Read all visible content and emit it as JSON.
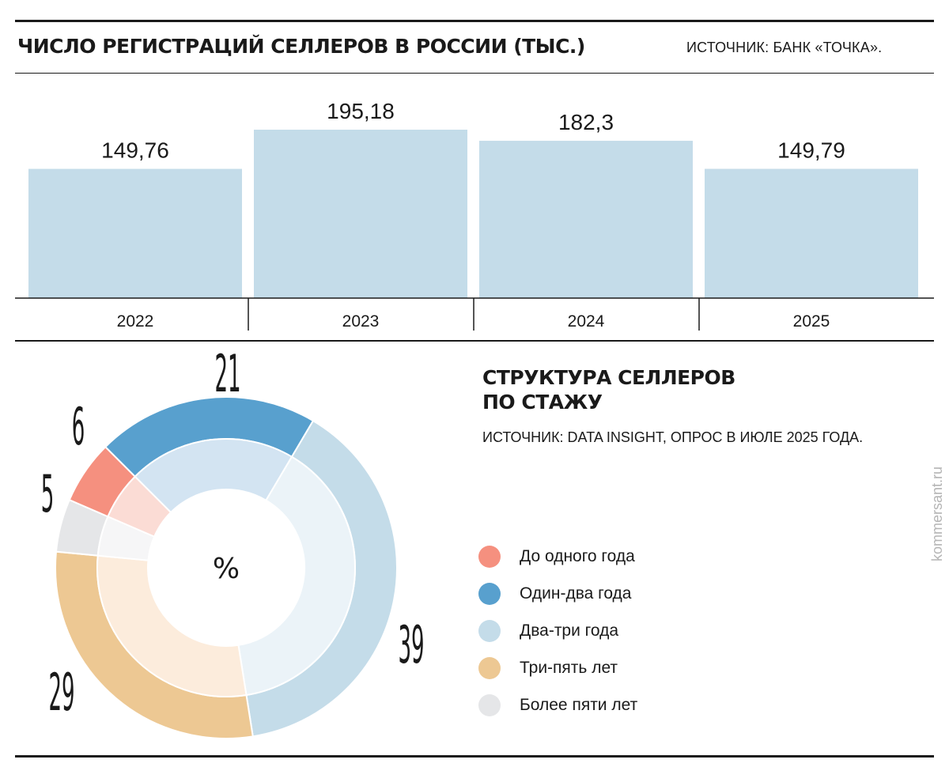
{
  "header": {
    "title": "ЧИСЛО РЕГИСТРАЦИЙ СЕЛЛЕРОВ В РОССИИ (ТЫС.)",
    "source": "ИСТОЧНИК: БАНК «ТОЧКА»."
  },
  "structure": {
    "title_line1": "СТРУКТУРА СЕЛЛЕРОВ",
    "title_line2": "ПО СТАЖУ",
    "source": "ИСТОЧНИК: DATA INSIGHT, ОПРОС В ИЮЛЕ 2025 ГОДА."
  },
  "credit": "kommersant.ru",
  "colors": {
    "bar": "#c4dce9",
    "rule": "#1a1a1a"
  },
  "chart_data": [
    {
      "type": "bar",
      "title": "ЧИСЛО РЕГИСТРАЦИЙ СЕЛЛЕРОВ В РОССИИ (ТЫС.)",
      "categories": [
        "2022",
        "2023",
        "2024",
        "2025"
      ],
      "values": [
        149.76,
        195.18,
        182.3,
        149.79
      ],
      "value_labels": [
        "149,76",
        "195,18",
        "182,3",
        "149,79"
      ],
      "ylim": [
        0,
        195.18
      ],
      "grid": false
    },
    {
      "type": "pie",
      "variant": "donut",
      "title": "СТРУКТУРА СЕЛЛЕРОВ ПО СТАЖУ",
      "center_label": "%",
      "legend_position": "right",
      "slices": [
        {
          "label": "До одного года",
          "value": 6,
          "color": "#f5907f",
          "inner_color": "#fbdcd5"
        },
        {
          "label": "Один-два года",
          "value": 21,
          "color": "#58a0ce",
          "inner_color": "#d3e4f2"
        },
        {
          "label": "Два-три года",
          "value": 39,
          "color": "#c4dce9",
          "inner_color": "#ebf3f8"
        },
        {
          "label": "Три-пять лет",
          "value": 29,
          "color": "#edc893",
          "inner_color": "#fcecdc"
        },
        {
          "label": "Более пяти лет",
          "value": 5,
          "color": "#e5e6e8",
          "inner_color": "#f6f6f7"
        }
      ]
    }
  ]
}
